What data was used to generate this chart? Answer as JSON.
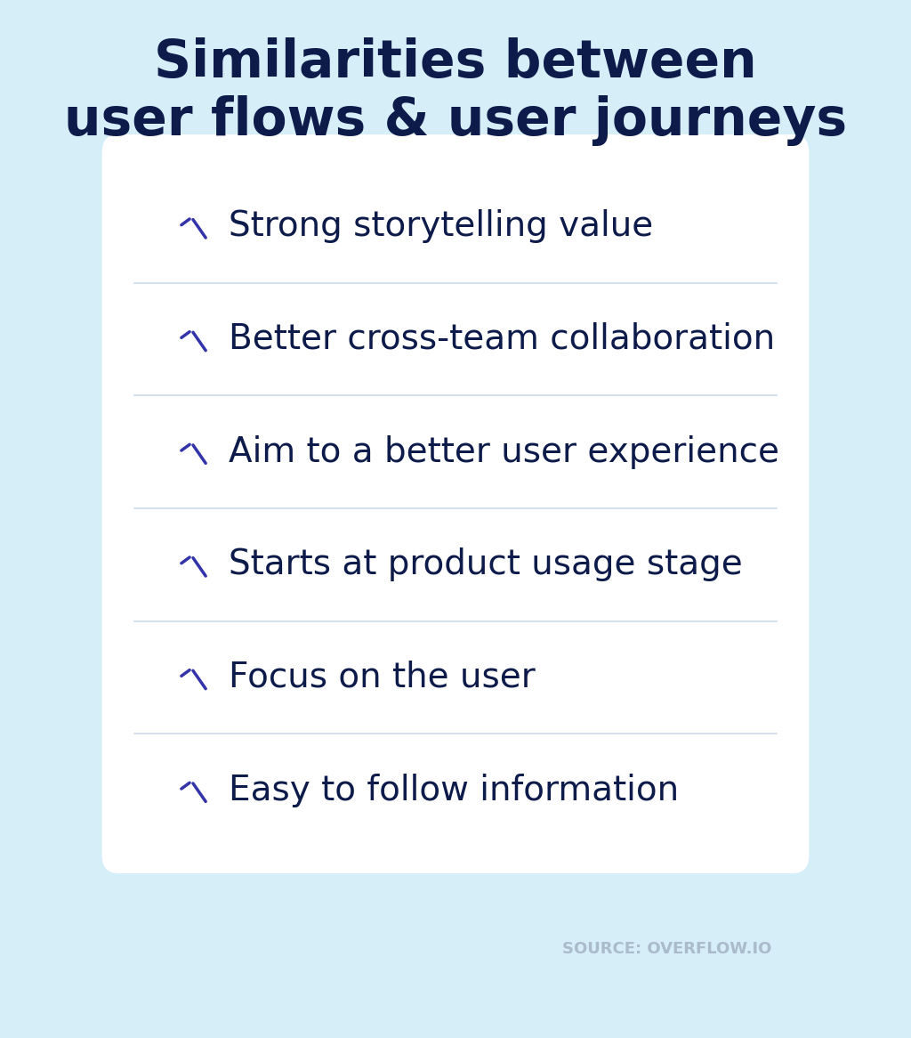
{
  "title_line1": "Similarities between",
  "title_line2": "user flows & user journeys",
  "title_color": "#0d1b4b",
  "title_fontsize": 42,
  "background_color": "#d6eef8",
  "card_color": "#ffffff",
  "items": [
    "Strong storytelling value",
    "Better cross-team collaboration",
    "Aim to a better user experience",
    "Starts at product usage stage",
    "Focus on the user",
    "Easy to follow information"
  ],
  "item_fontsize": 28,
  "item_color": "#0d1b4b",
  "check_color": "#3333aa",
  "divider_color": "#ccddee",
  "source_text": "SOURCE: OVERFLOW.IO",
  "source_color": "#aabbcc",
  "source_fontsize": 13
}
